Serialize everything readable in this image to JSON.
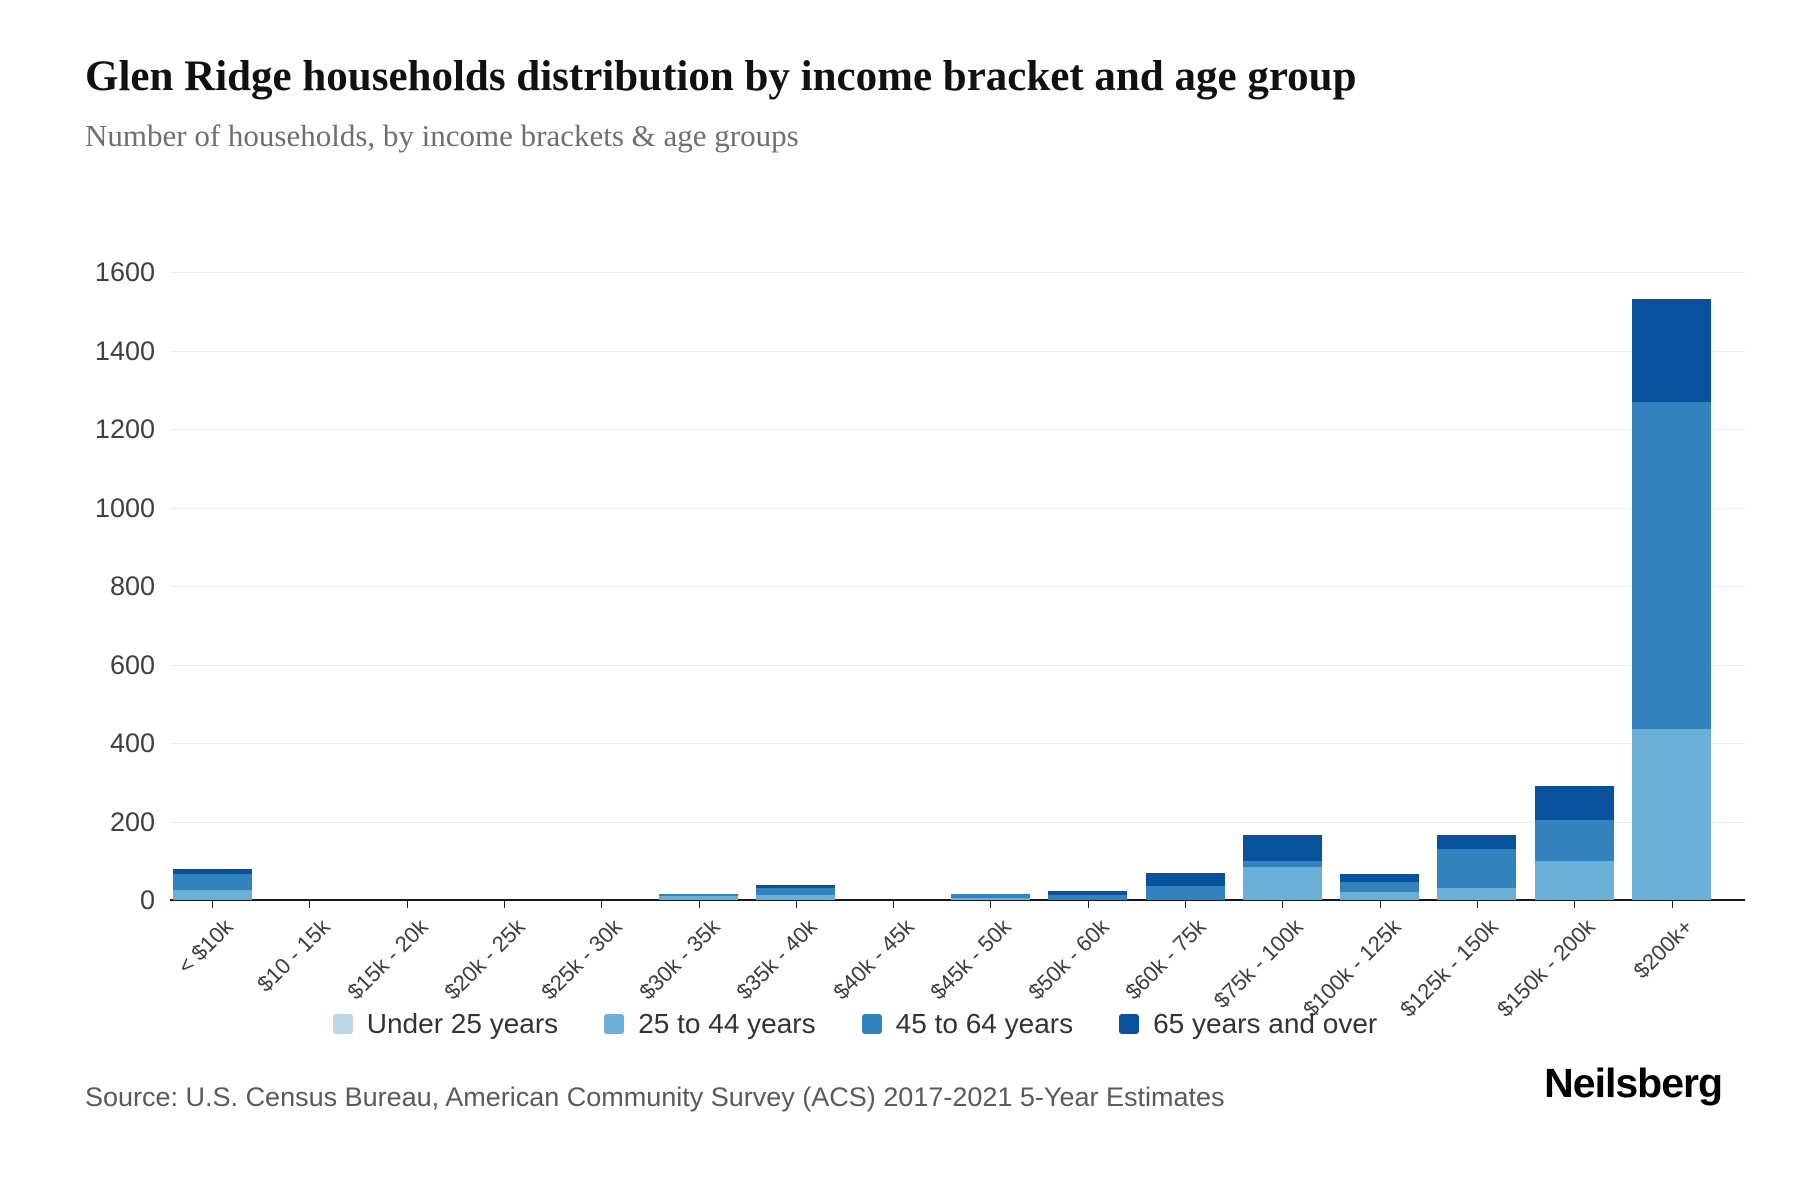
{
  "title": "Glen Ridge households distribution by income bracket and age group",
  "subtitle": "Number of households, by income brackets & age groups",
  "source": "Source: U.S. Census Bureau, American Community Survey (ACS) 2017-2021 5-Year Estimates",
  "brand": "Neilsberg",
  "colors": {
    "grid": "#ededed",
    "axis": "#17181a",
    "under25": "#bdd7e7",
    "age25to44": "#6baed6",
    "age45to64": "#3182bd",
    "age65plus": "#08519c"
  },
  "chart_data": {
    "type": "bar",
    "stacked": true,
    "title": "Glen Ridge households distribution by income bracket and age group",
    "subtitle": "Number of households, by income brackets & age groups",
    "xlabel": "",
    "ylabel": "",
    "ylim": [
      0,
      1600
    ],
    "yticks": [
      0,
      200,
      400,
      600,
      800,
      1000,
      1200,
      1400,
      1600
    ],
    "grid": true,
    "legend_position": "bottom",
    "categories": [
      "< $10k",
      "$10 - 15k",
      "$15k - 20k",
      "$20k - 25k",
      "$25k - 30k",
      "$30k - 35k",
      "$35k - 40k",
      "$40k - 45k",
      "$45k - 50k",
      "$50k - 60k",
      "$60k - 75k",
      "$75k - 100k",
      "$100k - 125k",
      "$125k - 150k",
      "$150k - 200k",
      "$200k+"
    ],
    "series": [
      {
        "name": "Under 25 years",
        "color": "#bdd7e7",
        "values": [
          0,
          0,
          0,
          0,
          0,
          0,
          0,
          0,
          0,
          0,
          0,
          0,
          0,
          0,
          0,
          0
        ]
      },
      {
        "name": "25 to 44 years",
        "color": "#6baed6",
        "values": [
          25,
          0,
          0,
          0,
          0,
          10,
          12,
          0,
          5,
          0,
          0,
          85,
          20,
          30,
          100,
          435
        ]
      },
      {
        "name": "45 to 64 years",
        "color": "#3182bd",
        "values": [
          40,
          0,
          0,
          0,
          0,
          5,
          18,
          0,
          10,
          12,
          35,
          15,
          25,
          100,
          105,
          835
        ]
      },
      {
        "name": "65 years and over",
        "color": "#08519c",
        "values": [
          15,
          0,
          0,
          0,
          0,
          0,
          8,
          0,
          0,
          10,
          35,
          65,
          20,
          35,
          85,
          260
        ]
      }
    ]
  }
}
